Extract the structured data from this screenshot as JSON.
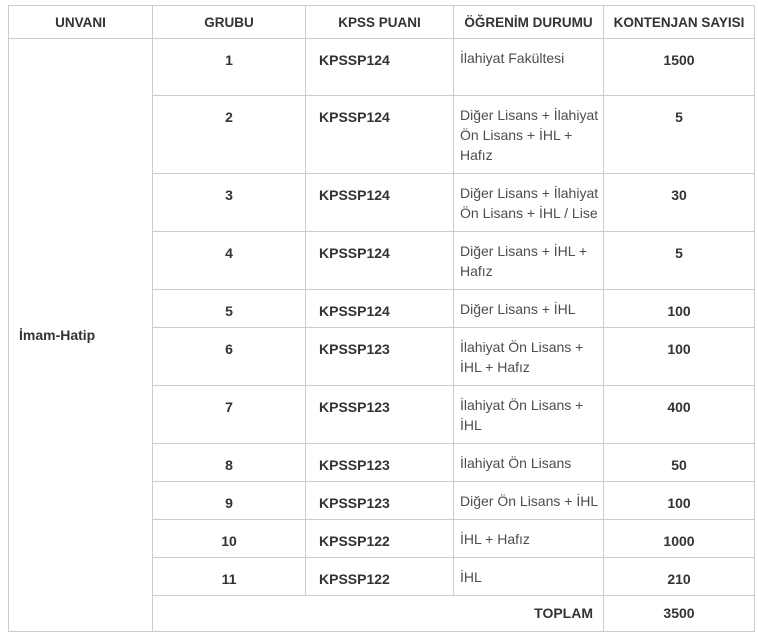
{
  "table": {
    "headers": [
      "UNVANI",
      "GRUBU",
      "KPSS PUANI",
      "ÖĞRENİM DURUMU",
      "KONTENJAN SAYISI"
    ],
    "unvani": "İmam-Hatip",
    "rows": [
      {
        "grubu": "1",
        "kpss": "KPSSP124",
        "ogrenim": "İlahiyat Fakültesi",
        "kontenjan": "1500"
      },
      {
        "grubu": "2",
        "kpss": "KPSSP124",
        "ogrenim": "Diğer Lisans + İlahiyat Ön Lisans + İHL + Hafız",
        "kontenjan": "5"
      },
      {
        "grubu": "3",
        "kpss": "KPSSP124",
        "ogrenim": "Diğer Lisans + İlahiyat Ön Lisans + İHL / Lise",
        "kontenjan": "30"
      },
      {
        "grubu": "4",
        "kpss": "KPSSP124",
        "ogrenim": "Diğer Lisans + İHL + Hafız",
        "kontenjan": "5"
      },
      {
        "grubu": "5",
        "kpss": "KPSSP124",
        "ogrenim": "Diğer Lisans + İHL",
        "kontenjan": "100"
      },
      {
        "grubu": "6",
        "kpss": "KPSSP123",
        "ogrenim": "İlahiyat Ön Lisans + İHL + Hafız",
        "kontenjan": "100"
      },
      {
        "grubu": "7",
        "kpss": "KPSSP123",
        "ogrenim": "İlahiyat Ön Lisans + İHL",
        "kontenjan": "400"
      },
      {
        "grubu": "8",
        "kpss": "KPSSP123",
        "ogrenim": "İlahiyat Ön Lisans",
        "kontenjan": "50"
      },
      {
        "grubu": "9",
        "kpss": "KPSSP123",
        "ogrenim": "Diğer Ön Lisans + İHL",
        "kontenjan": "100"
      },
      {
        "grubu": "10",
        "kpss": "KPSSP122",
        "ogrenim": "İHL + Hafız",
        "kontenjan": "1000"
      },
      {
        "grubu": "11",
        "kpss": "KPSSP122",
        "ogrenim": "İHL",
        "kontenjan": "210"
      }
    ],
    "total_label": "TOPLAM",
    "total_value": "3500"
  },
  "colors": {
    "border": "#cccccc",
    "text_bold": "#333333",
    "text_regular": "#4d4d4d",
    "background": "#ffffff"
  }
}
